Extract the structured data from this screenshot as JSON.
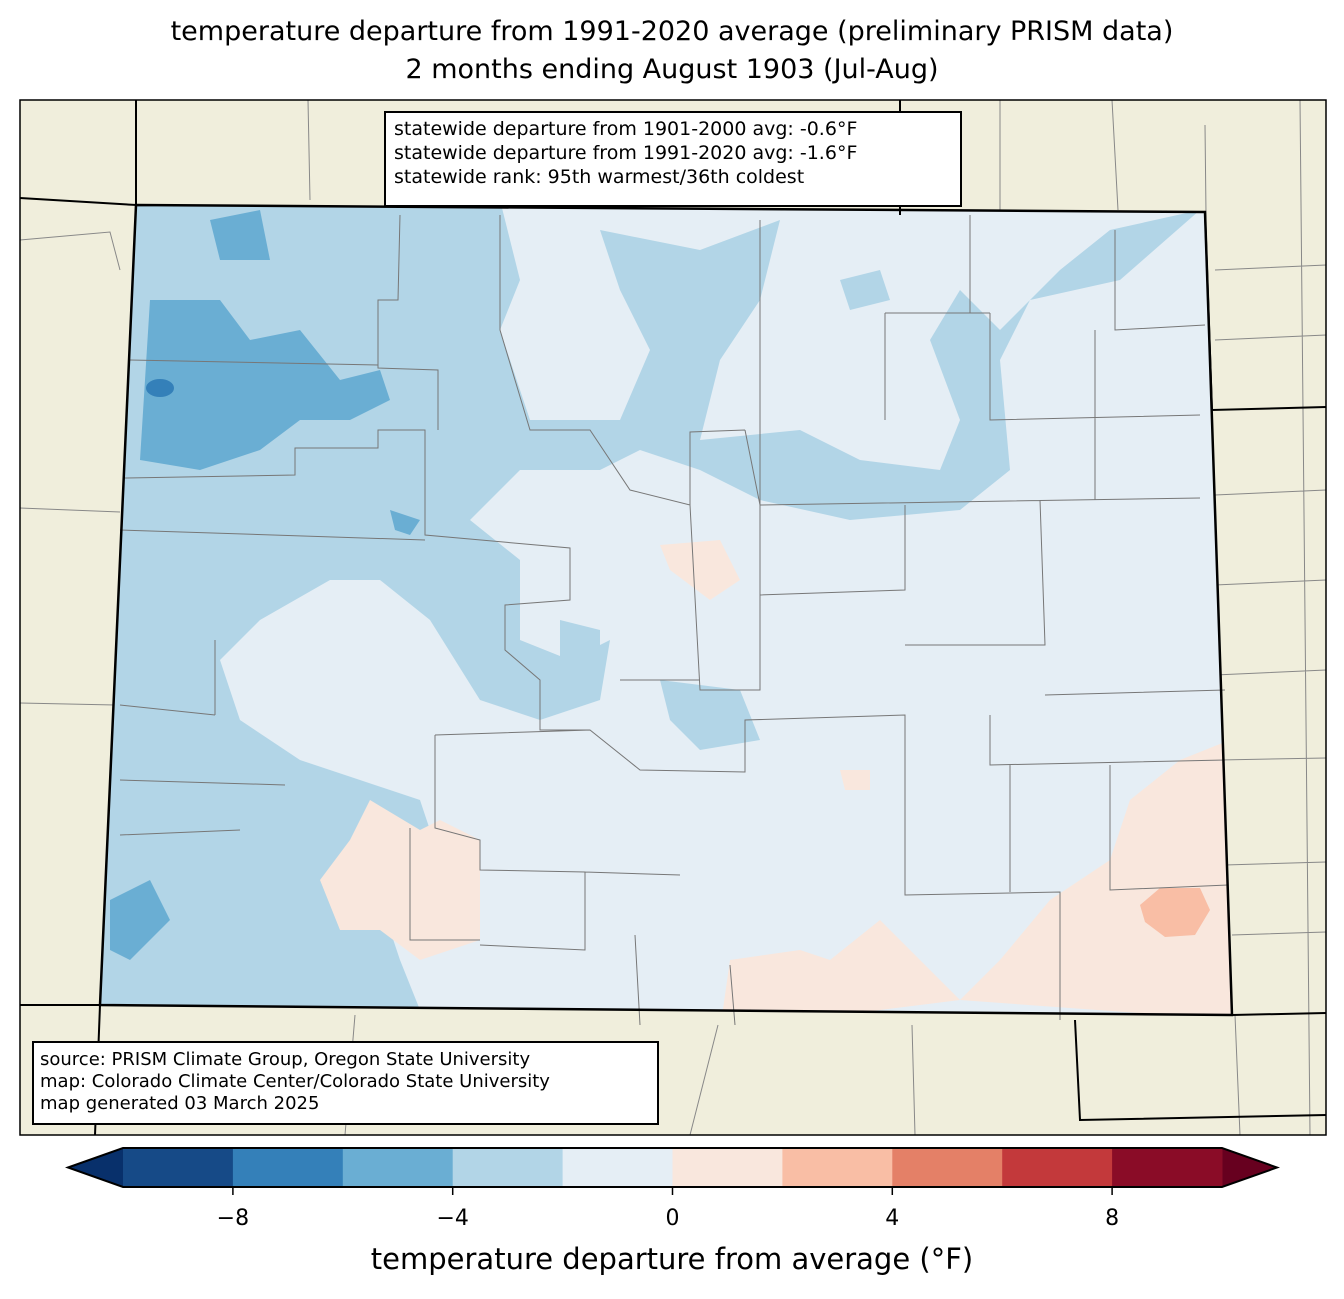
{
  "title": {
    "line1": "temperature departure from 1991-2020 average (preliminary PRISM data)",
    "line2": "2 months ending August 1903 (Jul-Aug)"
  },
  "stats_box": {
    "line1": "statewide departure from 1901-2000 avg: -0.6°F",
    "line2": "statewide departure from 1991-2020 avg: -1.6°F",
    "line3": "statewide rank: 95th warmest/36th coldest"
  },
  "source_box": {
    "line1": "source: PRISM Climate Group, Oregon State University",
    "line2": "map: Colorado Climate Center/Colorado State University",
    "line3": "map generated 03 March 2025"
  },
  "colorbar": {
    "label": "temperature departure from average (°F)",
    "levels": [
      -10,
      -8,
      -6,
      -4,
      -2,
      0,
      2,
      4,
      6,
      8,
      10
    ],
    "colors": [
      "#164a87",
      "#3480b9",
      "#6aaed3",
      "#b2d5e7",
      "#e5eef5",
      "#f9e7dd",
      "#f9bea5",
      "#e48067",
      "#c3393b",
      "#8a0c27"
    ],
    "under_color": "#08306b",
    "over_color": "#67001f",
    "ticks": [
      {
        "value": -8,
        "label": "−8"
      },
      {
        "value": -4,
        "label": "−4"
      },
      {
        "value": 0,
        "label": "0"
      },
      {
        "value": 4,
        "label": "4"
      },
      {
        "value": 8,
        "label": "8"
      }
    ]
  },
  "map_colors": {
    "land": "#f0eedc",
    "base": "#e5eef5"
  }
}
